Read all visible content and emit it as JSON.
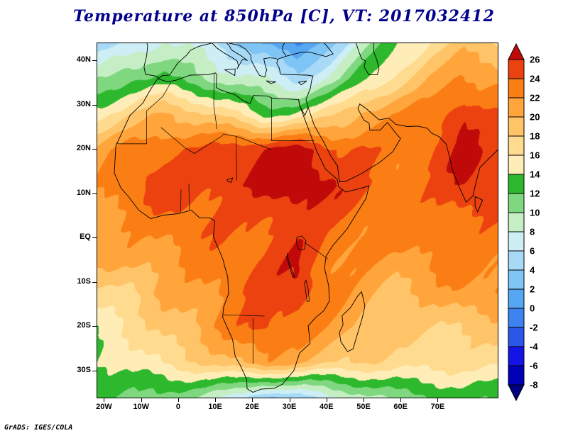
{
  "title": {
    "text": "Temperature at 850hPa [C], VT: 2017032412",
    "color": "#00008b"
  },
  "credit": "GrADS: IGES/COLA",
  "axes": {
    "lat_ticks": [
      {
        "v": 40,
        "label": "40N"
      },
      {
        "v": 30,
        "label": "30N"
      },
      {
        "v": 20,
        "label": "20N"
      },
      {
        "v": 10,
        "label": "10N"
      },
      {
        "v": 0,
        "label": "EQ"
      },
      {
        "v": -10,
        "label": "10S"
      },
      {
        "v": -20,
        "label": "20S"
      },
      {
        "v": -30,
        "label": "30S"
      }
    ],
    "lon_ticks": [
      {
        "v": -20,
        "label": "20W"
      },
      {
        "v": -10,
        "label": "10W"
      },
      {
        "v": 0,
        "label": "0"
      },
      {
        "v": 10,
        "label": "10E"
      },
      {
        "v": 20,
        "label": "20E"
      },
      {
        "v": 30,
        "label": "30E"
      },
      {
        "v": 40,
        "label": "40E"
      },
      {
        "v": 50,
        "label": "50E"
      },
      {
        "v": 60,
        "label": "60E"
      },
      {
        "v": 70,
        "label": "70E"
      }
    ],
    "lon_range": [
      -22,
      86
    ],
    "lat_range": [
      -36,
      44
    ]
  },
  "colorbar": {
    "levels": [
      -8,
      -6,
      -4,
      -2,
      0,
      2,
      4,
      6,
      8,
      10,
      12,
      14,
      16,
      18,
      20,
      22,
      24,
      26
    ],
    "colors": [
      "#000080",
      "#0000b8",
      "#1414e6",
      "#2b57e8",
      "#3c82f0",
      "#55a7f2",
      "#7ec4f5",
      "#a8daf7",
      "#cdeef5",
      "#c5eec5",
      "#7fd77f",
      "#2db82d",
      "#ffedb8",
      "#ffdb90",
      "#ffc468",
      "#ffa53c",
      "#fb7e14",
      "#ec4210",
      "#c00a0a"
    ]
  },
  "chart_data": {
    "type": "heatmap",
    "title": "Temperature at 850hPa [C], VT: 2017032412",
    "variable": "Temperature",
    "level": "850hPa",
    "units": "C",
    "valid_time": "2017032412",
    "credit": "GrADS: IGES/COLA",
    "contour_interval": 2,
    "range": [
      -8,
      26
    ],
    "lons": [
      -22,
      -13,
      -4,
      5,
      14,
      23,
      32,
      41,
      50,
      59,
      68,
      77,
      86
    ],
    "lats": [
      44,
      36,
      28,
      20,
      12,
      4,
      -4,
      -12,
      -20,
      -28,
      -36
    ],
    "values_degC": [
      [
        4,
        6,
        9,
        8,
        5,
        2,
        -2,
        3,
        9,
        14,
        17,
        19,
        18
      ],
      [
        10,
        12,
        12,
        10,
        9,
        8,
        5,
        8,
        13,
        17,
        21,
        23,
        22
      ],
      [
        16,
        18,
        20,
        18,
        16,
        13,
        15,
        18,
        21,
        22,
        23,
        26,
        24
      ],
      [
        20,
        23,
        24,
        24,
        25,
        26,
        27,
        25,
        25,
        23,
        24,
        26,
        24
      ],
      [
        21,
        23,
        25,
        25,
        26,
        27,
        28,
        26,
        24,
        23,
        24,
        26,
        25
      ],
      [
        22,
        22,
        23,
        24,
        24,
        25,
        26,
        24,
        22,
        22,
        23,
        24,
        24
      ],
      [
        21,
        22,
        22,
        23,
        23,
        24,
        26,
        23,
        22,
        21,
        22,
        23,
        23
      ],
      [
        17,
        18,
        21,
        22,
        23,
        24,
        25,
        22,
        21,
        20,
        21,
        22,
        22
      ],
      [
        15,
        16,
        18,
        20,
        23,
        25,
        23,
        21,
        20,
        19,
        19,
        19,
        19
      ],
      [
        14,
        15,
        16,
        17,
        19,
        22,
        21,
        19,
        18,
        17,
        17,
        17,
        17
      ],
      [
        12,
        12,
        11,
        10,
        7,
        3,
        5,
        8,
        10,
        11,
        11,
        12,
        12
      ]
    ]
  }
}
